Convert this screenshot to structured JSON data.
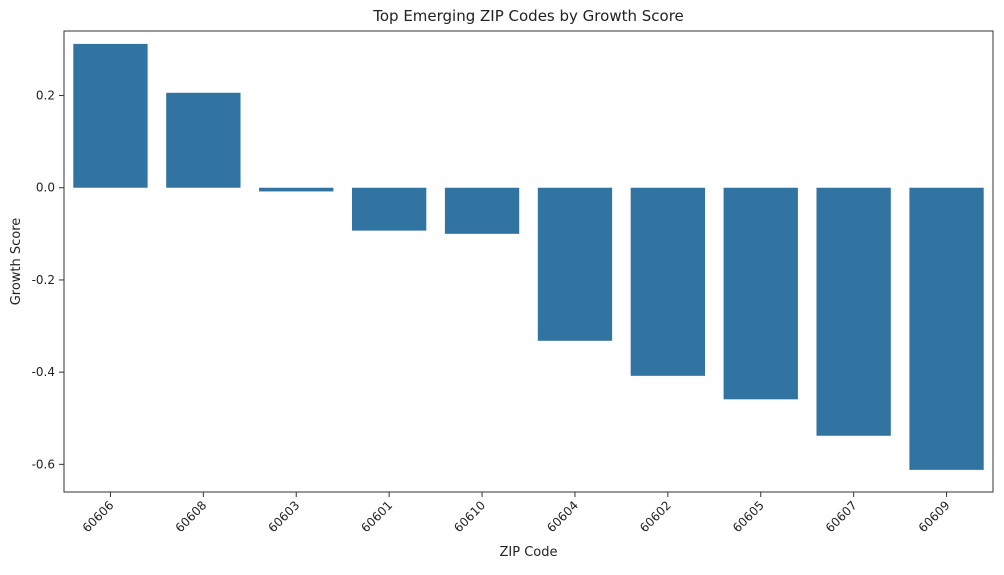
{
  "chart_data": {
    "type": "bar",
    "title": "Top Emerging ZIP Codes by Growth Score",
    "xlabel": "ZIP Code",
    "ylabel": "Growth Score",
    "categories": [
      "60606",
      "60608",
      "60603",
      "60601",
      "60610",
      "60604",
      "60602",
      "60605",
      "60607",
      "60609"
    ],
    "values": [
      0.312,
      0.206,
      -0.008,
      -0.093,
      -0.1,
      -0.332,
      -0.408,
      -0.459,
      -0.538,
      -0.612
    ],
    "ylim": [
      -0.66,
      0.34
    ],
    "yticks": [
      0.2,
      0.0,
      -0.2,
      -0.4,
      -0.6
    ],
    "ytick_labels": [
      "0.2",
      "0.0",
      "-0.2",
      "-0.4",
      "-0.6"
    ],
    "bar_color": "#3274a1",
    "grid": false,
    "legend": "none"
  }
}
